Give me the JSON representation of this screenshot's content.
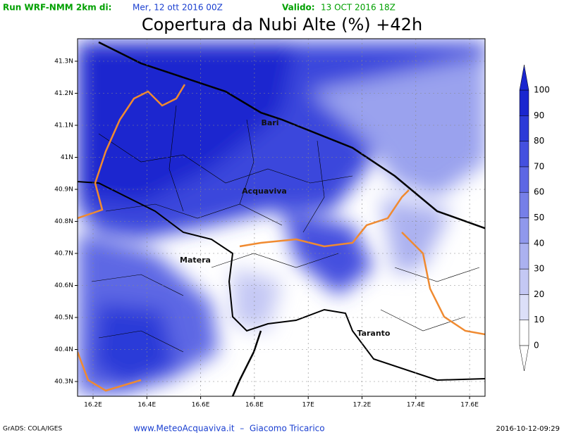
{
  "header": {
    "run": "Run WRF-NMM 2km di:",
    "run_date": "Mer, 12 ott 2016 00Z",
    "valid_label": "Valido:",
    "valid_date": "13 OCT 2016 18Z",
    "title": "Copertura da Nubi Alte (%) +42h"
  },
  "map": {
    "lat_labels": [
      "41.3N",
      "41.2N",
      "41.1N",
      "41N",
      "40.9N",
      "40.8N",
      "40.7N",
      "40.6N",
      "40.5N",
      "40.4N",
      "40.3N"
    ],
    "lon_labels": [
      "16.2E",
      "16.4E",
      "16.6E",
      "16.8E",
      "17E",
      "17.2E",
      "17.4E",
      "17.6E"
    ],
    "places": [
      "Bari",
      "Acquaviva",
      "Matera",
      "Taranto"
    ]
  },
  "colorbar": {
    "levels": [
      0,
      10,
      20,
      30,
      40,
      50,
      60,
      70,
      80,
      90,
      100
    ],
    "colors": [
      "#ffffff",
      "#dcdff8",
      "#c4c8f4",
      "#abb1f0",
      "#9098ec",
      "#767fe8",
      "#5d67e4",
      "#4450df",
      "#2c3ad8",
      "#1a26cf"
    ]
  },
  "footer": {
    "left": "GrADS: COLA/IGES",
    "center": "www.MeteoAcquaviva.it  –  Giacomo Tricarico",
    "right": "2016-10-12-09:29"
  }
}
